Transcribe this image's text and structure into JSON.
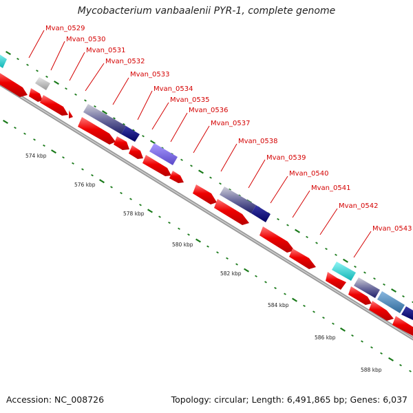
{
  "title": "Mycobacterium vanbaalenii PYR-1, complete genome",
  "footer": {
    "accession": "Accession: NC_008726",
    "summary": "Topology: circular; Length: 6,491,865 bp; Genes: 6,037"
  },
  "kbp_labels": [
    "574 kbp",
    "576 kbp",
    "578 kbp",
    "580 kbp",
    "582 kbp",
    "584 kbp",
    "586 kbp",
    "588 kbp"
  ],
  "gene_labels": [
    "Mvan_0529",
    "Mvan_0530",
    "Mvan_0531",
    "Mvan_0532",
    "Mvan_0533",
    "Mvan_0534",
    "Mvan_0535",
    "Mvan_0536",
    "Mvan_0537",
    "Mvan_0538",
    "Mvan_0539",
    "Mvan_0540",
    "Mvan_0541",
    "Mvan_0542",
    "Mvan_0543"
  ],
  "colors": {
    "cds": "#ee0000",
    "grey_feature": "#bbbbbb",
    "dark_blue_feature": "#0a0a7a",
    "purple_feature": "#7b68ee",
    "cyan_feature": "#22d3d3",
    "steel_blue_feature": "#4682b4",
    "backbone": "#888888",
    "tick": "#1a7a1a",
    "label": "#d40000"
  }
}
